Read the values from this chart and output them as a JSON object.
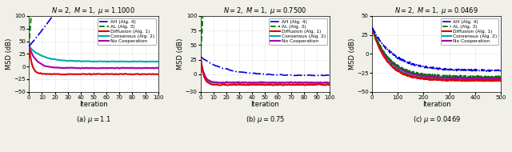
{
  "panels": [
    {
      "title": "$N = 2,\\ M = 1,\\ \\mu = 1.1000$",
      "caption": "(a) $\\mu = 1.1$",
      "xlim": [
        0,
        100
      ],
      "ylim": [
        -50,
        100
      ],
      "yticks": [
        -50,
        -25,
        0,
        25,
        50,
        75,
        100
      ],
      "xticks": [
        0,
        10,
        20,
        30,
        40,
        50,
        60,
        70,
        80,
        90,
        100
      ],
      "xlabel": "Iteration",
      "ylabel": "MSD (dB)",
      "n_iter": 101
    },
    {
      "title": "$N = 2,\\ M = 1,\\ \\mu = 0.7500$",
      "caption": "(b) $\\mu = 0.75$",
      "xlim": [
        0,
        100
      ],
      "ylim": [
        -30,
        100
      ],
      "yticks": [
        -30,
        0,
        25,
        50,
        75,
        100
      ],
      "xticks": [
        0,
        10,
        20,
        30,
        40,
        50,
        60,
        70,
        80,
        90,
        100
      ],
      "xlabel": "Iteration",
      "ylabel": "MSD (dB)",
      "n_iter": 101
    },
    {
      "title": "$N = 2,\\ M = 1,\\ \\mu = 0.0469$",
      "caption": "(c) $\\mu = 0.0469$",
      "xlim": [
        0,
        500
      ],
      "ylim": [
        -50,
        50
      ],
      "yticks": [
        -50,
        -25,
        0,
        25,
        50
      ],
      "xticks": [
        0,
        100,
        200,
        300,
        400,
        500
      ],
      "xlabel": "Iteration",
      "ylabel": "MSD (dB)",
      "n_iter": 501
    }
  ],
  "colors": {
    "AH": "#0000DD",
    "AL": "#007700",
    "Diffusion": "#DD0000",
    "Consensus": "#00AAAA",
    "NoCoop": "#AA00AA"
  },
  "bg_color": "#FFFFFF",
  "grid_color": "#BBBBBB",
  "fig_bg": "#F0EFE8"
}
